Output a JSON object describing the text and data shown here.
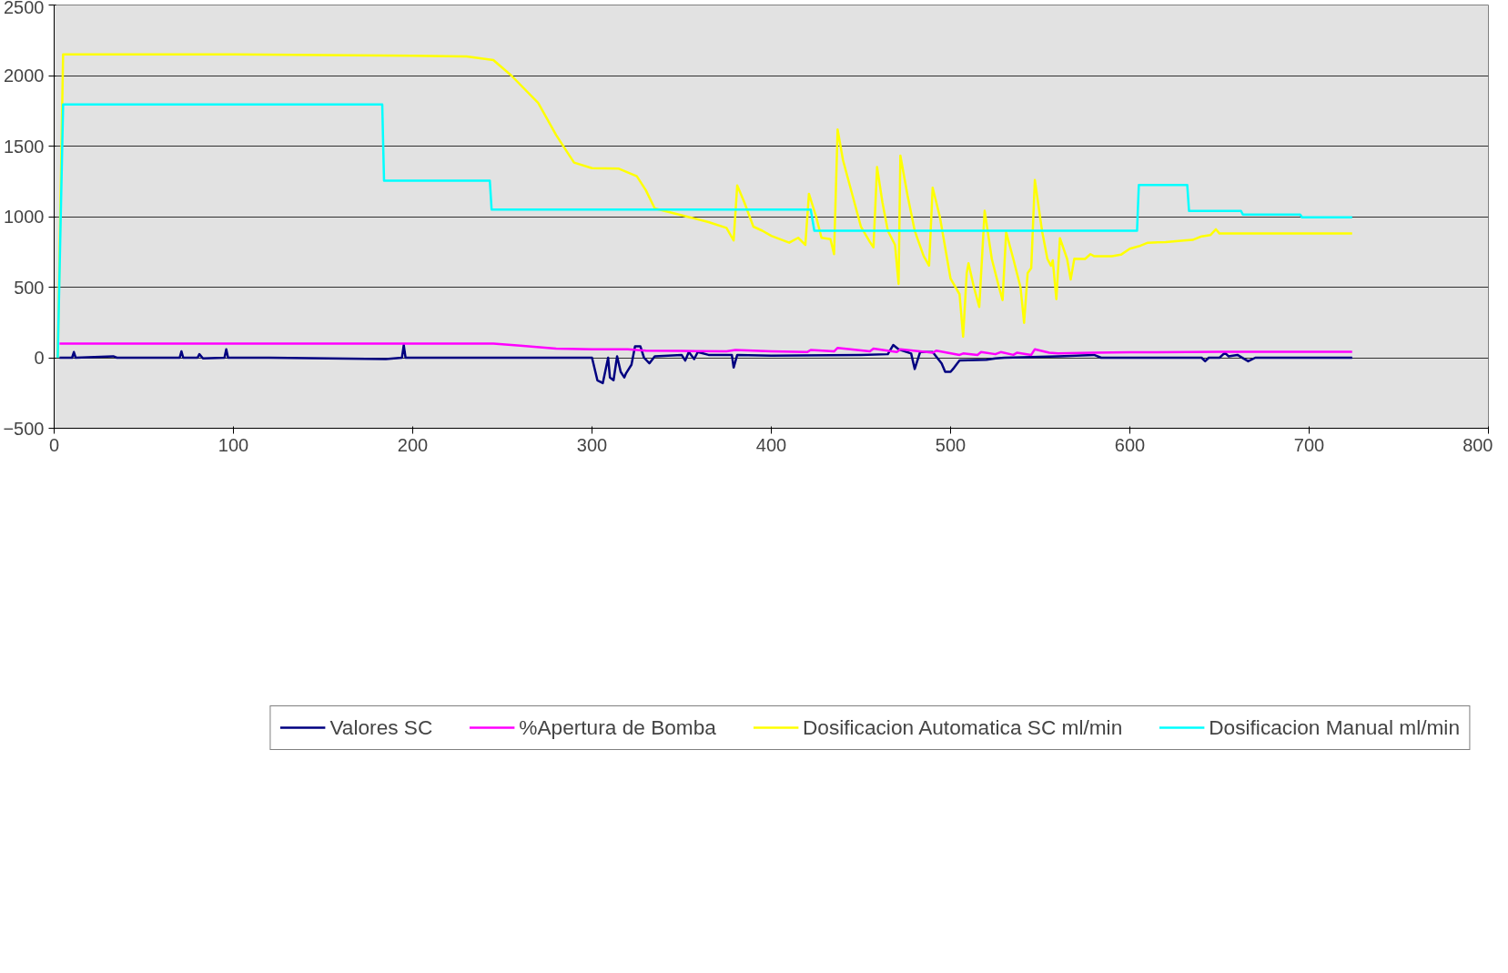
{
  "chart_data": {
    "type": "line",
    "xlim": [
      0,
      800
    ],
    "xticks": [
      0,
      100,
      200,
      300,
      400,
      500,
      600,
      700,
      800
    ],
    "ylim": [
      -500,
      2500
    ],
    "yticks": [
      -500,
      0,
      500,
      1000,
      1500,
      2000,
      2500
    ],
    "grid": "y",
    "legend": "bottom",
    "line_style": "solid",
    "marker": "none",
    "series": [
      {
        "name": "Valores SC",
        "color": "#000080",
        "x": [
          3,
          10,
          11,
          12,
          33,
          35,
          70,
          71,
          72,
          80,
          81,
          83,
          95,
          96,
          97,
          120,
          185,
          194,
          195,
          196,
          240,
          300,
          303,
          306,
          309,
          310,
          312,
          314,
          316,
          318,
          319,
          322,
          324,
          327,
          329,
          332,
          335,
          350,
          352,
          354,
          357,
          359,
          365,
          378,
          379,
          381,
          400,
          450,
          465,
          468,
          471,
          478,
          480,
          483,
          490,
          495,
          497,
          500,
          502,
          505,
          520,
          525,
          530,
          560,
          580,
          584,
          640,
          642,
          644,
          650,
          653,
          655,
          660,
          666,
          670,
          724
        ],
        "values": [
          0,
          0,
          40,
          0,
          10,
          0,
          0,
          45,
          0,
          0,
          25,
          -5,
          0,
          60,
          0,
          0,
          -10,
          0,
          90,
          0,
          0,
          0,
          -160,
          -180,
          0,
          -140,
          -160,
          10,
          -100,
          -140,
          -110,
          -50,
          80,
          80,
          0,
          -40,
          10,
          20,
          -20,
          40,
          -10,
          40,
          20,
          20,
          -70,
          20,
          15,
          20,
          25,
          90,
          60,
          30,
          -80,
          40,
          40,
          -40,
          -100,
          -100,
          -70,
          -20,
          -15,
          -5,
          0,
          10,
          20,
          0,
          0,
          -25,
          0,
          0,
          35,
          10,
          20,
          -25,
          0,
          0
        ]
      },
      {
        "name": "%Apertura de Bomba",
        "color": "#ff00ff",
        "x": [
          3,
          245,
          260,
          280,
          300,
          320,
          330,
          350,
          375,
          380,
          400,
          420,
          422,
          435,
          437,
          455,
          457,
          470,
          472,
          490,
          492,
          505,
          507,
          515,
          517,
          525,
          528,
          535,
          537,
          545,
          547,
          555,
          560,
          580,
          600,
          650,
          724
        ],
        "values": [
          100,
          100,
          85,
          65,
          60,
          60,
          50,
          48,
          45,
          55,
          45,
          40,
          55,
          45,
          70,
          45,
          65,
          40,
          60,
          35,
          50,
          20,
          30,
          20,
          40,
          25,
          40,
          20,
          35,
          20,
          60,
          35,
          30,
          35,
          38,
          42,
          42
        ]
      },
      {
        "name": "Dosificacion Automatica SC ml/min",
        "color": "#ffff00",
        "x": [
          2,
          5,
          100,
          200,
          230,
          245,
          255,
          270,
          280,
          285,
          290,
          300,
          315,
          325,
          330,
          335,
          345,
          355,
          365,
          375,
          379,
          381,
          385,
          390,
          395,
          400,
          410,
          415,
          419,
          421,
          425,
          428,
          433,
          435,
          437,
          440,
          450,
          455,
          457,
          459,
          462,
          465,
          469,
          471,
          472,
          476,
          480,
          485,
          488,
          490,
          494,
          500,
          505,
          507,
          509,
          510,
          513,
          516,
          519,
          523,
          527,
          529,
          531,
          535,
          539,
          541,
          543,
          545,
          547,
          551,
          554,
          556,
          557,
          559,
          561,
          565,
          567,
          569,
          575,
          578,
          580,
          590,
          595,
          600,
          605,
          610,
          620,
          630,
          635,
          640,
          645,
          648,
          650,
          660,
          700,
          724
        ],
        "values": [
          0,
          2150,
          2150,
          2140,
          2135,
          2110,
          2000,
          1805,
          1578,
          1480,
          1383,
          1344,
          1340,
          1286,
          1188,
          1058,
          1026,
          994,
          961,
          920,
          831,
          1221,
          1100,
          929,
          900,
          864,
          815,
          850,
          800,
          1162,
          1000,
          850,
          840,
          734,
          1617,
          1400,
          929,
          820,
          782,
          1351,
          1100,
          900,
          800,
          523,
          1432,
          1150,
          900,
          720,
          653,
          1205,
          1000,
          560,
          450,
          149,
          600,
          669,
          500,
          360,
          1042,
          700,
          500,
          409,
          890,
          700,
          500,
          247,
          600,
          636,
          1260,
          900,
          700,
          652,
          690,
          415,
          847,
          700,
          555,
          701,
          700,
          734,
          720,
          720,
          730,
          773,
          790,
          815,
          820,
          830,
          835,
          860,
          870,
          910,
          880,
          880,
          880,
          880
        ]
      },
      {
        "name": "Dosificacion Manual ml/min",
        "color": "#00ffff",
        "x": [
          2,
          5,
          183,
          184,
          243,
          244,
          422,
          424,
          604,
          605,
          632,
          633,
          662,
          663,
          695,
          696,
          724
        ],
        "values": [
          0,
          1795,
          1795,
          1255,
          1255,
          1050,
          1050,
          900,
          900,
          1225,
          1225,
          1040,
          1040,
          1015,
          1015,
          995,
          995
        ]
      }
    ]
  }
}
